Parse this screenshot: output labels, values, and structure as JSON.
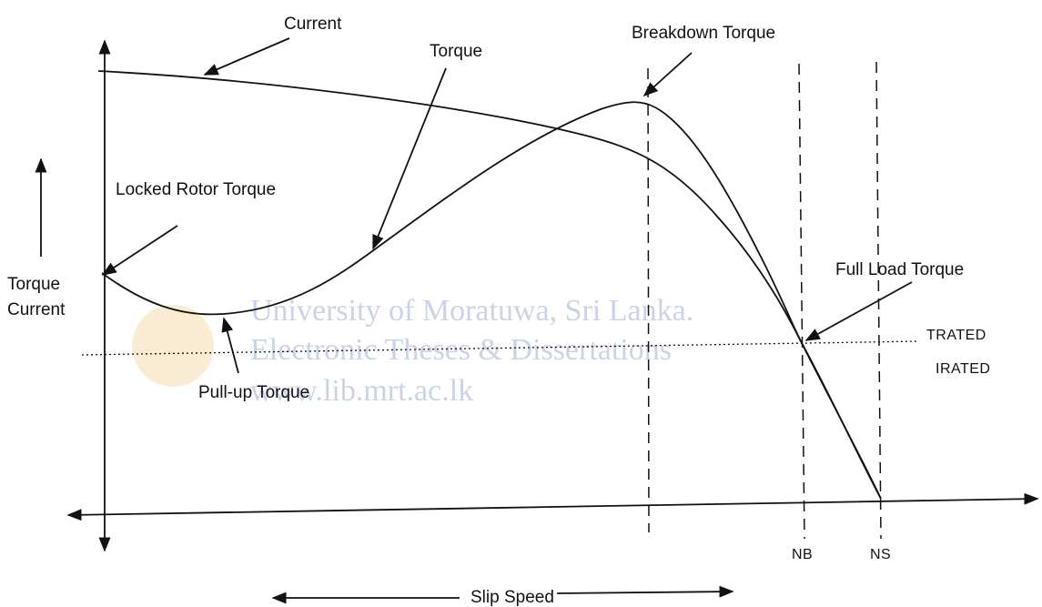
{
  "labels": {
    "current": "Current",
    "torque": "Torque",
    "breakdown": "Breakdown Torque",
    "locked_rotor": "Locked Rotor Torque",
    "y_axis": [
      "Torque",
      "Current"
    ],
    "full_load": "Full Load Torque",
    "t_rated": "TRATED",
    "i_rated": "IRATED",
    "pull_up": "Pull-up Torque",
    "nb": "NB",
    "ns": "NS",
    "slip_speed": "Slip Speed"
  },
  "watermark": [
    "University of Moratuwa, Sri Lanka.",
    "Electronic Theses & Dissertations",
    "www.lib.mrt.ac.lk"
  ]
}
